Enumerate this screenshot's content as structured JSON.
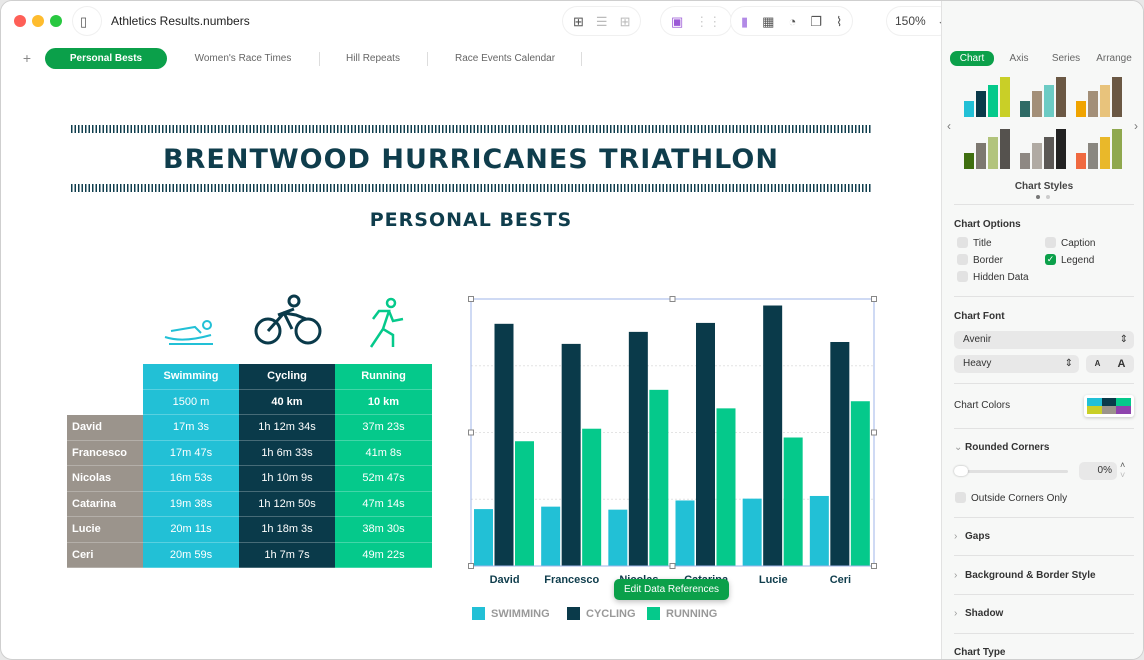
{
  "window": {
    "title": "Athletics Results.numbers",
    "zoom": "150%"
  },
  "sheets": [
    {
      "label": "Personal Bests",
      "active": true
    },
    {
      "label": "Women's Race Times"
    },
    {
      "label": "Hill Repeats"
    },
    {
      "label": "Race Events Calendar"
    }
  ],
  "doc": {
    "title": "BRENTWOOD HURRICANES TRIATHLON",
    "subtitle": "PERSONAL BESTS"
  },
  "table": {
    "columns": [
      {
        "name": "Swimming",
        "distance": "1500 m"
      },
      {
        "name": "Cycling",
        "distance": "40 km"
      },
      {
        "name": "Running",
        "distance": "10 km"
      }
    ],
    "rows": [
      {
        "name": "David",
        "times": [
          "17m 3s",
          "1h 12m 34s",
          "37m 23s"
        ]
      },
      {
        "name": "Francesco",
        "times": [
          "17m 47s",
          "1h 6m 33s",
          "41m 8s"
        ]
      },
      {
        "name": "Nicolas",
        "times": [
          "16m 53s",
          "1h 10m 9s",
          "52m 47s"
        ]
      },
      {
        "name": "Catarina",
        "times": [
          "19m 38s",
          "1h 12m 50s",
          "47m 14s"
        ]
      },
      {
        "name": "Lucie",
        "times": [
          "20m 11s",
          "1h 18m 3s",
          "38m 30s"
        ]
      },
      {
        "name": "Ceri",
        "times": [
          "20m 59s",
          "1h 7m 7s",
          "49m 22s"
        ]
      }
    ]
  },
  "chart_data": {
    "type": "bar",
    "categories": [
      "David",
      "Francesco",
      "Nicolas",
      "Catarina",
      "Lucie",
      "Ceri"
    ],
    "series": [
      {
        "name": "SWIMMING",
        "color": "#22c0d6",
        "values": [
          1023,
          1067,
          1013,
          1178,
          1211,
          1259
        ]
      },
      {
        "name": "CYCLING",
        "color": "#0a3a4a",
        "values": [
          4354,
          3993,
          4209,
          4370,
          4683,
          4027
        ]
      },
      {
        "name": "RUNNING",
        "color": "#05c98b",
        "values": [
          2243,
          2468,
          3167,
          2834,
          2310,
          2962
        ]
      }
    ],
    "ylim": [
      0,
      4800
    ],
    "grid": true,
    "legend": "bottom"
  },
  "popup": {
    "edit_refs": "Edit Data References"
  },
  "inspector": {
    "tabs": [
      "Chart",
      "Axis",
      "Series",
      "Arrange"
    ],
    "chart_styles": "Chart Styles",
    "chart_options": "Chart Options",
    "options": [
      {
        "label": "Title",
        "checked": false
      },
      {
        "label": "Caption",
        "checked": false
      },
      {
        "label": "Border",
        "checked": false
      },
      {
        "label": "Legend",
        "checked": true
      },
      {
        "label": "Hidden Data",
        "checked": false
      }
    ],
    "chart_font": "Chart Font",
    "font": "Avenir",
    "weight": "Heavy",
    "font_smaller": "A",
    "font_larger": "A",
    "chart_colors": "Chart Colors",
    "colors": [
      "#22c0d6",
      "#0a3a4a",
      "#05c98b",
      "#c9cf27",
      "#9b948c",
      "#8e44ad"
    ],
    "rounded_corners": "Rounded Corners",
    "rounded_value": "0%",
    "rounded_fraction": 0,
    "outside_corners": "Outside Corners Only",
    "sections": [
      "Gaps",
      "Background & Border Style",
      "Shadow"
    ],
    "chart_type": "Chart Type"
  }
}
